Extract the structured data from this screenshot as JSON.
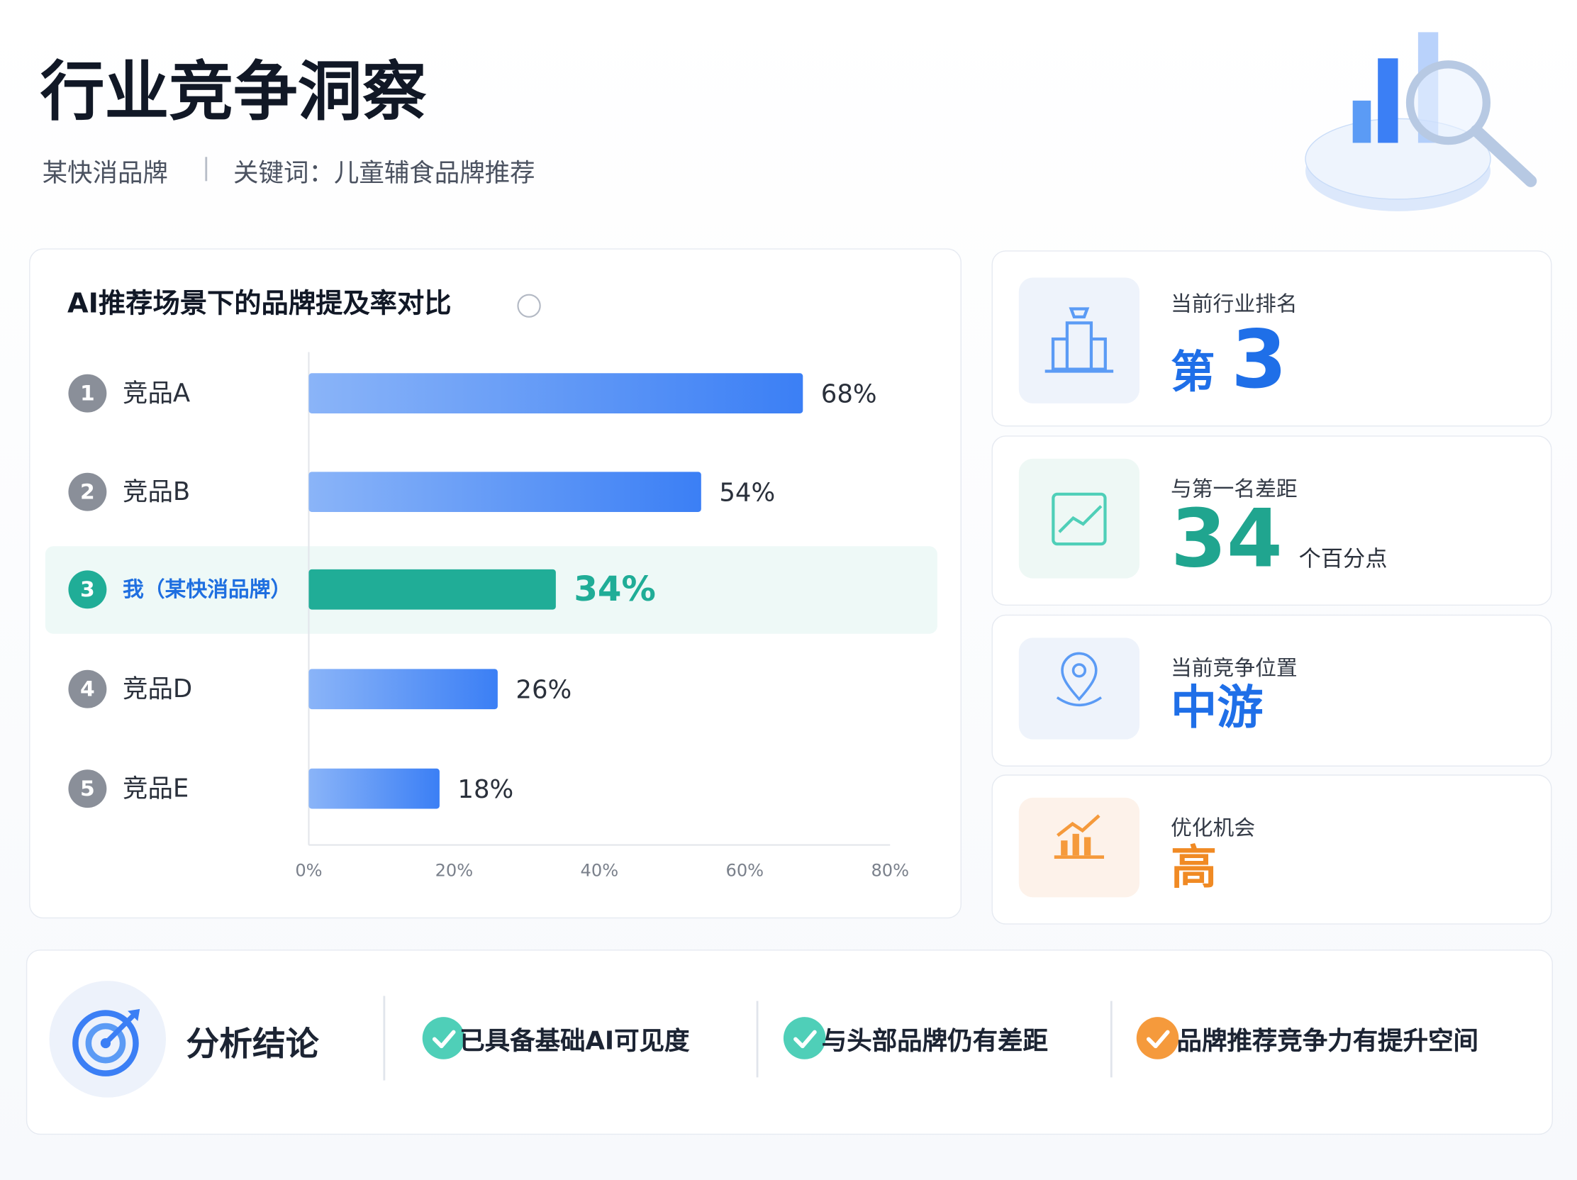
{
  "header": {
    "title": "行业竞争洞察",
    "brand": "某快消品牌",
    "keyword": "关键词：儿童辅食品牌推荐"
  },
  "chart_data": {
    "type": "bar",
    "orientation": "horizontal",
    "title": "AI推荐场景下的品牌提及率对比",
    "ranks": [
      1,
      2,
      3,
      4,
      5
    ],
    "categories": [
      "竞品A",
      "竞品B",
      "我（某快消品牌）",
      "竞品D",
      "竞品E"
    ],
    "values": [
      68,
      54,
      34,
      26,
      18
    ],
    "value_labels": [
      "68%",
      "54%",
      "34%",
      "26%",
      "18%"
    ],
    "color": "#3b7ff5",
    "highlight_index": 2,
    "highlight_color": "#20ad97",
    "xlim": [
      0,
      80
    ],
    "xticks": [
      {
        "value": 0,
        "label": "0%"
      },
      {
        "value": 20,
        "label": "20%"
      },
      {
        "value": 40,
        "label": "40%"
      },
      {
        "value": 60,
        "label": "60%"
      },
      {
        "value": 80,
        "label": "80%"
      }
    ]
  },
  "metrics": [
    {
      "label": "当前行业排名",
      "prefix": "第",
      "value": 3,
      "color": "#1f6fe8"
    },
    {
      "label": "与第一名差距",
      "value": 34,
      "unit": "个百分点",
      "color": "#20a58f"
    },
    {
      "label": "当前竞争位置",
      "value": "中游",
      "color": "#1f6fe8"
    },
    {
      "label": "优化机会",
      "value": "高",
      "color": "#f08a24"
    }
  ],
  "conclusion": {
    "title": "分析结论",
    "items": [
      {
        "text": "已具备基础AI可见度",
        "color": "#4fcfb8"
      },
      {
        "text": "与头部品牌仍有差距",
        "color": "#4fcfb8"
      },
      {
        "text": "品牌推荐竞争力有提升空间",
        "color": "#f59a3c"
      }
    ]
  }
}
